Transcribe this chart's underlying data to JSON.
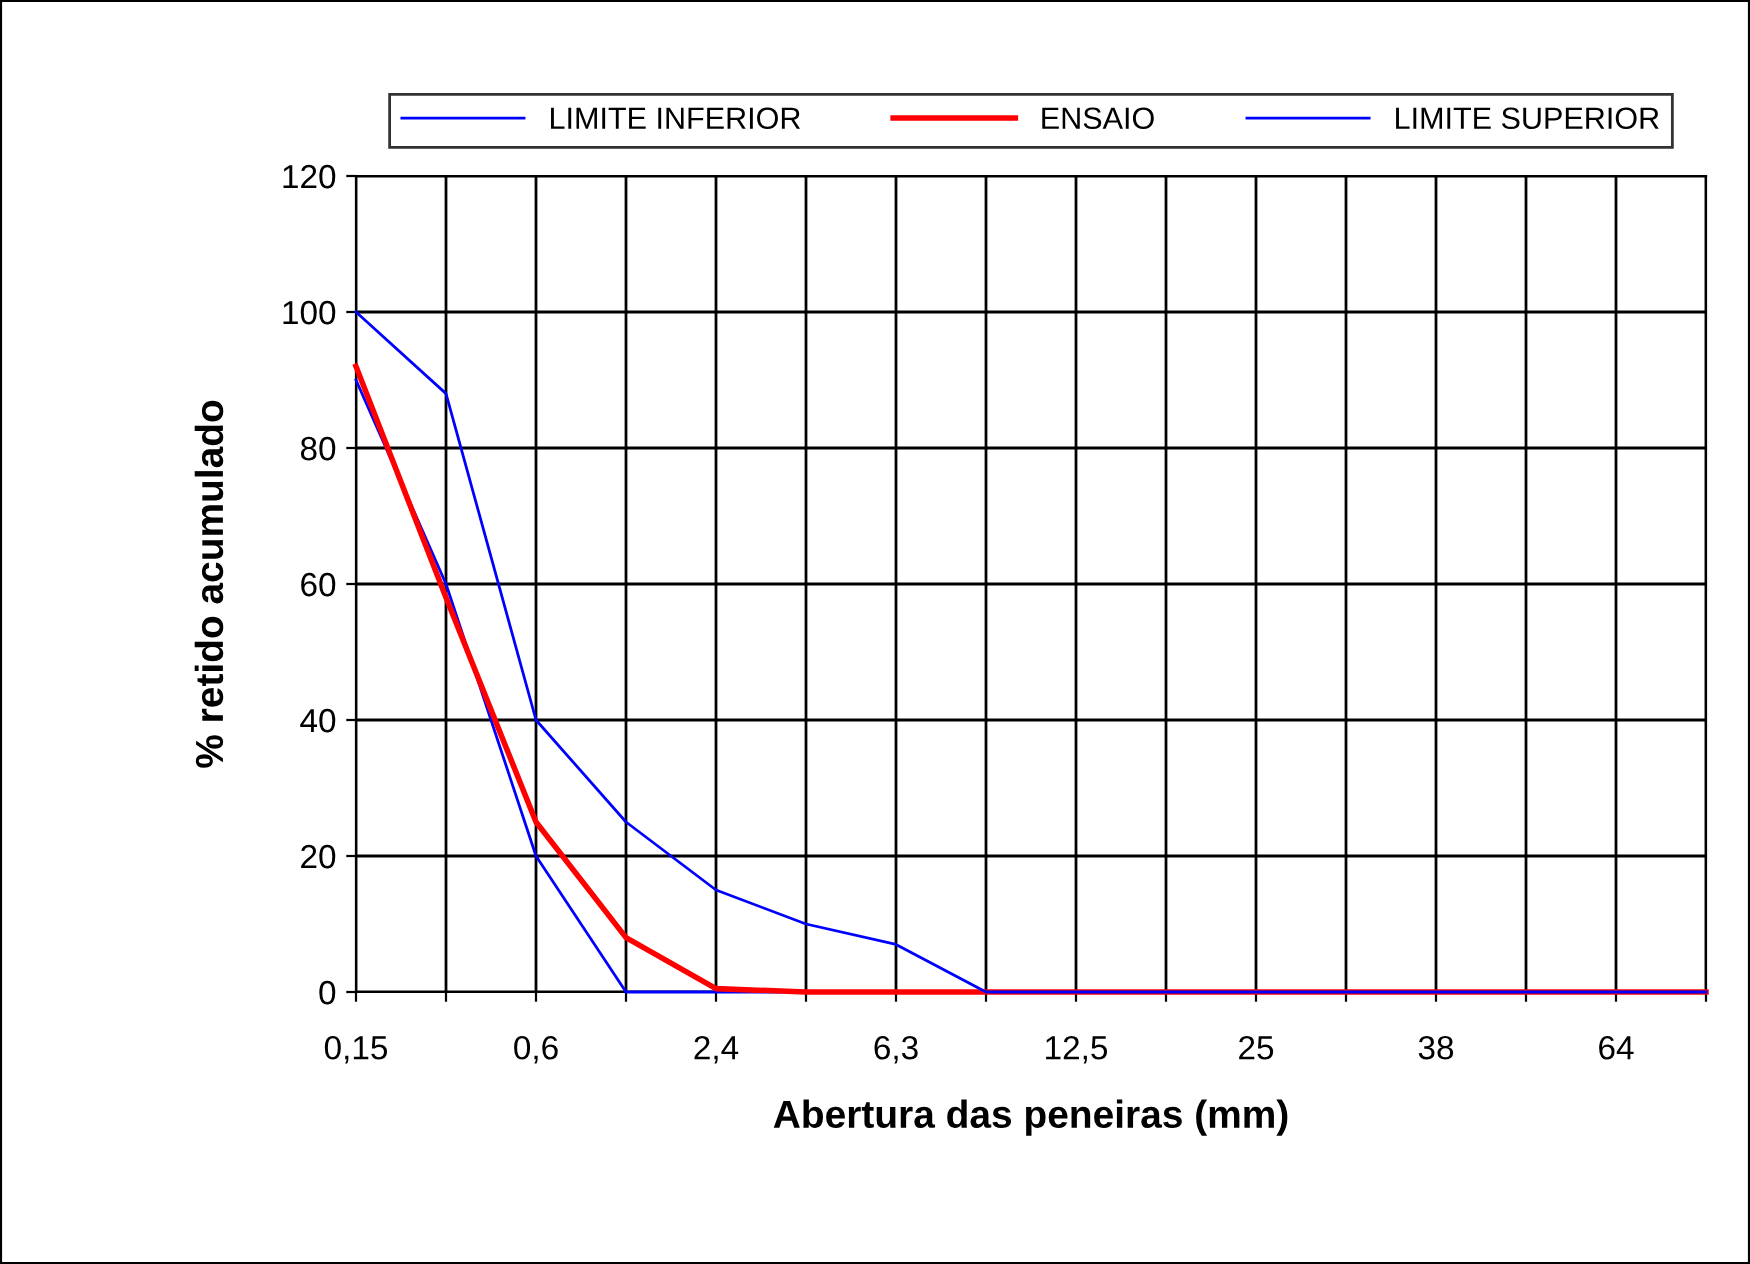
{
  "chart_data": {
    "type": "line",
    "xlabel": "Abertura das peneiras (mm)",
    "ylabel": "% retido acumulado",
    "categories": [
      "0,15",
      null,
      "0,6",
      null,
      "2,4",
      null,
      "6,3",
      null,
      "12,5",
      null,
      "25",
      null,
      "38",
      null,
      "64",
      null
    ],
    "series": [
      {
        "name": "LIMITE INFERIOR",
        "color": "#0000ff",
        "values": [
          90,
          60,
          20,
          0,
          0,
          0,
          0,
          0,
          0,
          0,
          0,
          0,
          0,
          0,
          0,
          0
        ]
      },
      {
        "name": "ENSAIO",
        "color": "#ff0000",
        "values": [
          92,
          58,
          25,
          8,
          0.5,
          0,
          0,
          0,
          0,
          0,
          0,
          0,
          0,
          0,
          0,
          0
        ]
      },
      {
        "name": "LIMITE SUPERIOR",
        "color": "#0000ff",
        "values": [
          100,
          88,
          40,
          25,
          15,
          10,
          7,
          0,
          0,
          0,
          0,
          0,
          0,
          0,
          0,
          0
        ]
      }
    ],
    "ylim": [
      0,
      120
    ],
    "yticks": [
      0,
      20,
      40,
      60,
      80,
      100,
      120
    ],
    "grid": true,
    "legend": "top",
    "marker": "none",
    "line_style": "solid"
  }
}
